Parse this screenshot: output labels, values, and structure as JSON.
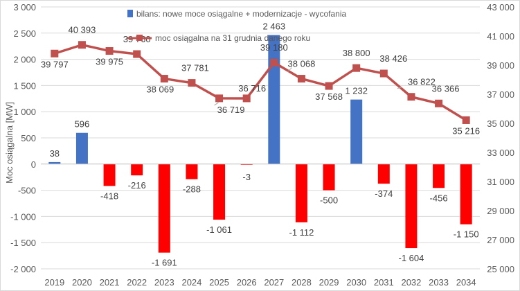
{
  "chart_data": {
    "type": "bar",
    "categories": [
      "2019",
      "2020",
      "2021",
      "2022",
      "2023",
      "2024",
      "2025",
      "2026",
      "2027",
      "2028",
      "2029",
      "2030",
      "2031",
      "2032",
      "2033",
      "2034"
    ],
    "series": [
      {
        "name": "bilans: nowe moce osiągalne + modernizacje - wycofania",
        "type": "bar",
        "axis": "left",
        "values": [
          38,
          596,
          -418,
          -216,
          -1691,
          -288,
          -1061,
          -3,
          2463,
          -1112,
          -500,
          1232,
          -374,
          -1604,
          -456,
          -1150
        ],
        "labels": [
          "38",
          "596",
          "-418",
          "-216",
          "-1 691",
          "-288",
          "-1 061",
          "-3",
          "2 463",
          "-1 112",
          "-500",
          "1 232",
          "-374",
          "-1 604",
          "-456",
          "-1 150"
        ]
      },
      {
        "name": "moc osiągalna na 31 grudnia danego roku",
        "type": "line",
        "axis": "right",
        "values": [
          39797,
          40393,
          39975,
          39760,
          38069,
          37781,
          36719,
          36716,
          39180,
          38068,
          37568,
          38800,
          38426,
          36822,
          36366,
          35216
        ],
        "labels": [
          "39 797",
          "40 393",
          "39 975",
          "39 760",
          "38 069",
          "37 781",
          "36 719",
          "36 716",
          "39 180",
          "38 068",
          "37 568",
          "38 800",
          "38 426",
          "36 822",
          "36 366",
          "35 216"
        ]
      }
    ],
    "ylabel": "Moc osiągalna [MW]",
    "ylim": [
      -2000,
      3000
    ],
    "y_ticks": [
      "3 000",
      "2 500",
      "2 000",
      "1 500",
      "1 000",
      "500",
      "0",
      "-500",
      "-1 000",
      "-1 500",
      "-2 000"
    ],
    "y_tick_values": [
      3000,
      2500,
      2000,
      1500,
      1000,
      500,
      0,
      -500,
      -1000,
      -1500,
      -2000
    ],
    "y2lim": [
      25000,
      43000
    ],
    "y2_ticks": [
      "43 000",
      "41 000",
      "39 000",
      "37 000",
      "35 000",
      "33 000",
      "31 000",
      "29 000",
      "27 000",
      "25 000"
    ],
    "y2_tick_values": [
      43000,
      41000,
      39000,
      37000,
      35000,
      33000,
      31000,
      29000,
      27000,
      25000
    ],
    "grid": true,
    "legend": "top-center",
    "colors": {
      "positive_bar": "#4472c4",
      "negative_bar": "#ff0000",
      "line": "#c0504d",
      "grid": "#d9d9d9"
    }
  }
}
